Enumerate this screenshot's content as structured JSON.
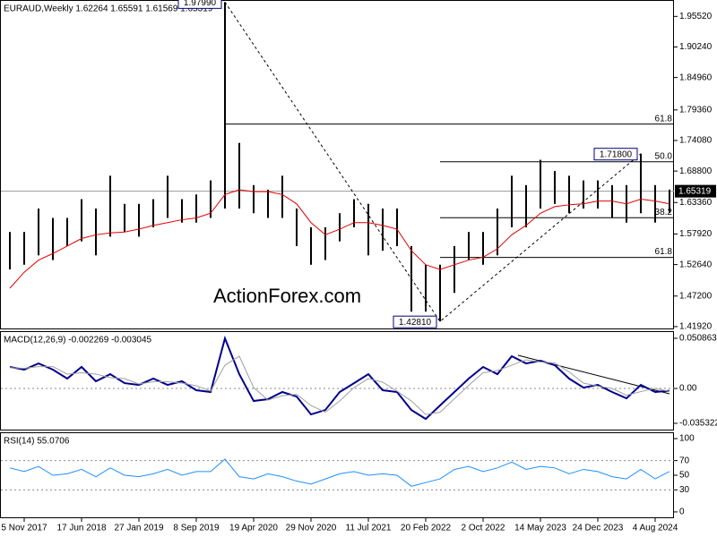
{
  "chart_data": [
    {
      "type": "range",
      "title": "EURAUD,Weekly  1.62264 1.65591 1.61569 1.65319",
      "watermark": "ActionForex.com",
      "categories": [
        null,
        "5 Nov 2017",
        null,
        null,
        null,
        "17 Jun 2018",
        null,
        null,
        null,
        "27 Jan 2019",
        null,
        null,
        null,
        "8 Sep 2019",
        null,
        null,
        null,
        "19 Apr 2020",
        null,
        null,
        null,
        "29 Nov 2020",
        null,
        null,
        null,
        "11 Jul 2021",
        null,
        null,
        null,
        "20 Feb 2022",
        null,
        null,
        null,
        "2 Oct 2022",
        null,
        null,
        null,
        "14 May 2023",
        null,
        null,
        null,
        "24 Dec 2023",
        null,
        null,
        null,
        "4 Aug 2024",
        null
      ],
      "high": [
        1.5827,
        1.5827,
        1.6232,
        1.607,
        1.607,
        1.6394,
        1.6232,
        1.6799,
        1.6313,
        1.6313,
        1.6394,
        1.6799,
        1.6394,
        1.6475,
        1.6718,
        1.9799,
        1.7366,
        1.6637,
        1.6556,
        1.6799,
        1.6232,
        1.5908,
        1.5908,
        1.6151,
        1.6394,
        1.6313,
        1.6232,
        1.6232,
        1.5584,
        1.5261,
        1.5261,
        1.5584,
        1.5827,
        1.5827,
        1.6232,
        1.6799,
        1.6637,
        1.7074,
        1.688,
        1.6799,
        1.6718,
        1.6718,
        1.6637,
        1.6637,
        1.718,
        1.6637,
        1.65591
      ],
      "low": [
        1.518,
        1.5261,
        1.5423,
        1.5342,
        1.5584,
        1.5665,
        1.5423,
        1.5746,
        1.5827,
        1.5746,
        1.5908,
        1.607,
        1.5989,
        1.5989,
        1.607,
        1.6232,
        1.6232,
        1.6151,
        1.607,
        1.607,
        1.5584,
        1.5261,
        1.5342,
        1.5665,
        1.5908,
        1.5423,
        1.5504,
        1.5584,
        1.4451,
        1.4451,
        1.4281,
        1.4775,
        1.5342,
        1.5261,
        1.5423,
        1.5908,
        1.5908,
        1.6232,
        1.6313,
        1.6151,
        1.6232,
        1.6232,
        1.607,
        1.5989,
        1.6151,
        1.5989,
        1.61569
      ],
      "color": "#000000",
      "series": [
        {
          "color": "#e00000",
          "values": [
            1.4856,
            1.5131,
            1.5342,
            1.5455,
            1.5584,
            1.5714,
            1.5779,
            1.5811,
            1.5827,
            1.5876,
            1.5941,
            1.5989,
            1.6038,
            1.607,
            1.6151,
            1.6475,
            1.6556,
            1.6524,
            1.6524,
            1.6475,
            1.6313,
            1.5989,
            1.5779,
            1.5876,
            1.5989,
            1.5989,
            1.5941,
            1.5876,
            1.5504,
            1.5261,
            1.518,
            1.5261,
            1.5342,
            1.539,
            1.5536,
            1.5779,
            1.5941,
            1.6151,
            1.6265,
            1.6297,
            1.6313,
            1.6362,
            1.6362,
            1.6313,
            1.6394,
            1.6362,
            1.6313
          ]
        }
      ],
      "last": 1.65319,
      "annotations": [
        {
          "value": 1.9799,
          "label": "1.97990"
        },
        {
          "value": 1.4281,
          "label": "1.42810"
        },
        {
          "value": 1.718,
          "label": "1.71800"
        }
      ],
      "fib_levels": [
        {
          "value": 1.7691,
          "label": "61.8"
        },
        {
          "value": 1.704,
          "label": "50.0"
        },
        {
          "value": 1.6073,
          "label": "38.2"
        },
        {
          "value": 1.5388,
          "label": "61.8"
        }
      ],
      "ylim": [
        1.416,
        1.982
      ],
      "yticks": [
        {
          "value": 1.9552,
          "label": "1.95520"
        },
        {
          "value": 1.9024,
          "label": "1.90240"
        },
        {
          "value": 1.8496,
          "label": "1.84960"
        },
        {
          "value": 1.7936,
          "label": "1.79360"
        },
        {
          "value": 1.7408,
          "label": "1.74080"
        },
        {
          "value": 1.688,
          "label": "1.68800"
        },
        {
          "value": 1.6336,
          "label": "1.63360"
        },
        {
          "value": 1.5792,
          "label": "1.57920"
        },
        {
          "value": 1.5264,
          "label": "1.52640"
        },
        {
          "value": 1.472,
          "label": "1.47200"
        },
        {
          "value": 1.4192,
          "label": "1.41920"
        }
      ]
    },
    {
      "type": "line",
      "title": "MACD(12,26,9) -0.002269 -0.003045",
      "series": [
        {
          "color": "#00008b",
          "values": [
            0.0218,
            0.0191,
            0.0254,
            0.0191,
            0.01,
            0.0218,
            0.0073,
            0.0145,
            0.0054,
            0.0036,
            0.01,
            0.0036,
            0.0073,
            -0.0018,
            -0.0036,
            0.0508,
            0.0145,
            -0.0127,
            -0.0109,
            -0.0036,
            -0.0082,
            -0.0263,
            -0.0218,
            -0.0036,
            0.0054,
            0.0145,
            -0.0018,
            -0.0036,
            -0.0218,
            -0.0309,
            -0.0172,
            -0.0036,
            0.01,
            0.0218,
            0.0145,
            0.0327,
            0.0254,
            0.0281,
            0.0236,
            0.01,
            0.0009,
            0.0036,
            -0.0036,
            -0.01,
            0.0036,
            -0.0036,
            -0.0023
          ]
        },
        {
          "color": "#a0a0a0",
          "values": [
            0.021,
            0.0205,
            0.0222,
            0.0222,
            0.0146,
            0.0159,
            0.0146,
            0.0109,
            0.01,
            0.0045,
            0.0068,
            0.0068,
            0.0055,
            0.0028,
            -0.0027,
            0.0236,
            0.0327,
            0.0009,
            -0.0118,
            -0.0073,
            -0.0059,
            -0.0173,
            -0.0241,
            -0.0127,
            0.0009,
            0.01,
            0.0064,
            -0.0027,
            -0.0127,
            -0.0264,
            -0.0241,
            -0.0104,
            0.0032,
            0.0159,
            0.0182,
            0.0236,
            0.0291,
            0.0268,
            0.0259,
            0.0168,
            0.0055,
            0.0023,
            0.0,
            -0.0068,
            -0.0032,
            0.0,
            -0.003
          ]
        }
      ],
      "levels": [
        0
      ],
      "ylim": [
        -0.0417,
        0.0572
      ],
      "yticks": [
        0.050863,
        {
          "value": 0,
          "label": "0.00"
        },
        -0.035322
      ]
    },
    {
      "type": "line",
      "title": "RSI(14) 55.0706",
      "series": [
        {
          "color": "#1e90ff",
          "values": [
            60,
            55,
            62,
            50,
            52,
            58,
            48,
            60,
            50,
            48,
            52,
            58,
            50,
            55,
            55,
            72,
            48,
            45,
            52,
            48,
            42,
            38,
            45,
            52,
            55,
            50,
            52,
            50,
            35,
            40,
            45,
            58,
            62,
            55,
            60,
            68,
            58,
            62,
            60,
            52,
            58,
            55,
            48,
            45,
            58,
            45,
            55.0706
          ]
        }
      ],
      "levels": [
        70,
        30
      ],
      "ylim": [
        -7.4,
        107.4
      ],
      "yticks": [
        100,
        70,
        50,
        30,
        0
      ]
    }
  ]
}
